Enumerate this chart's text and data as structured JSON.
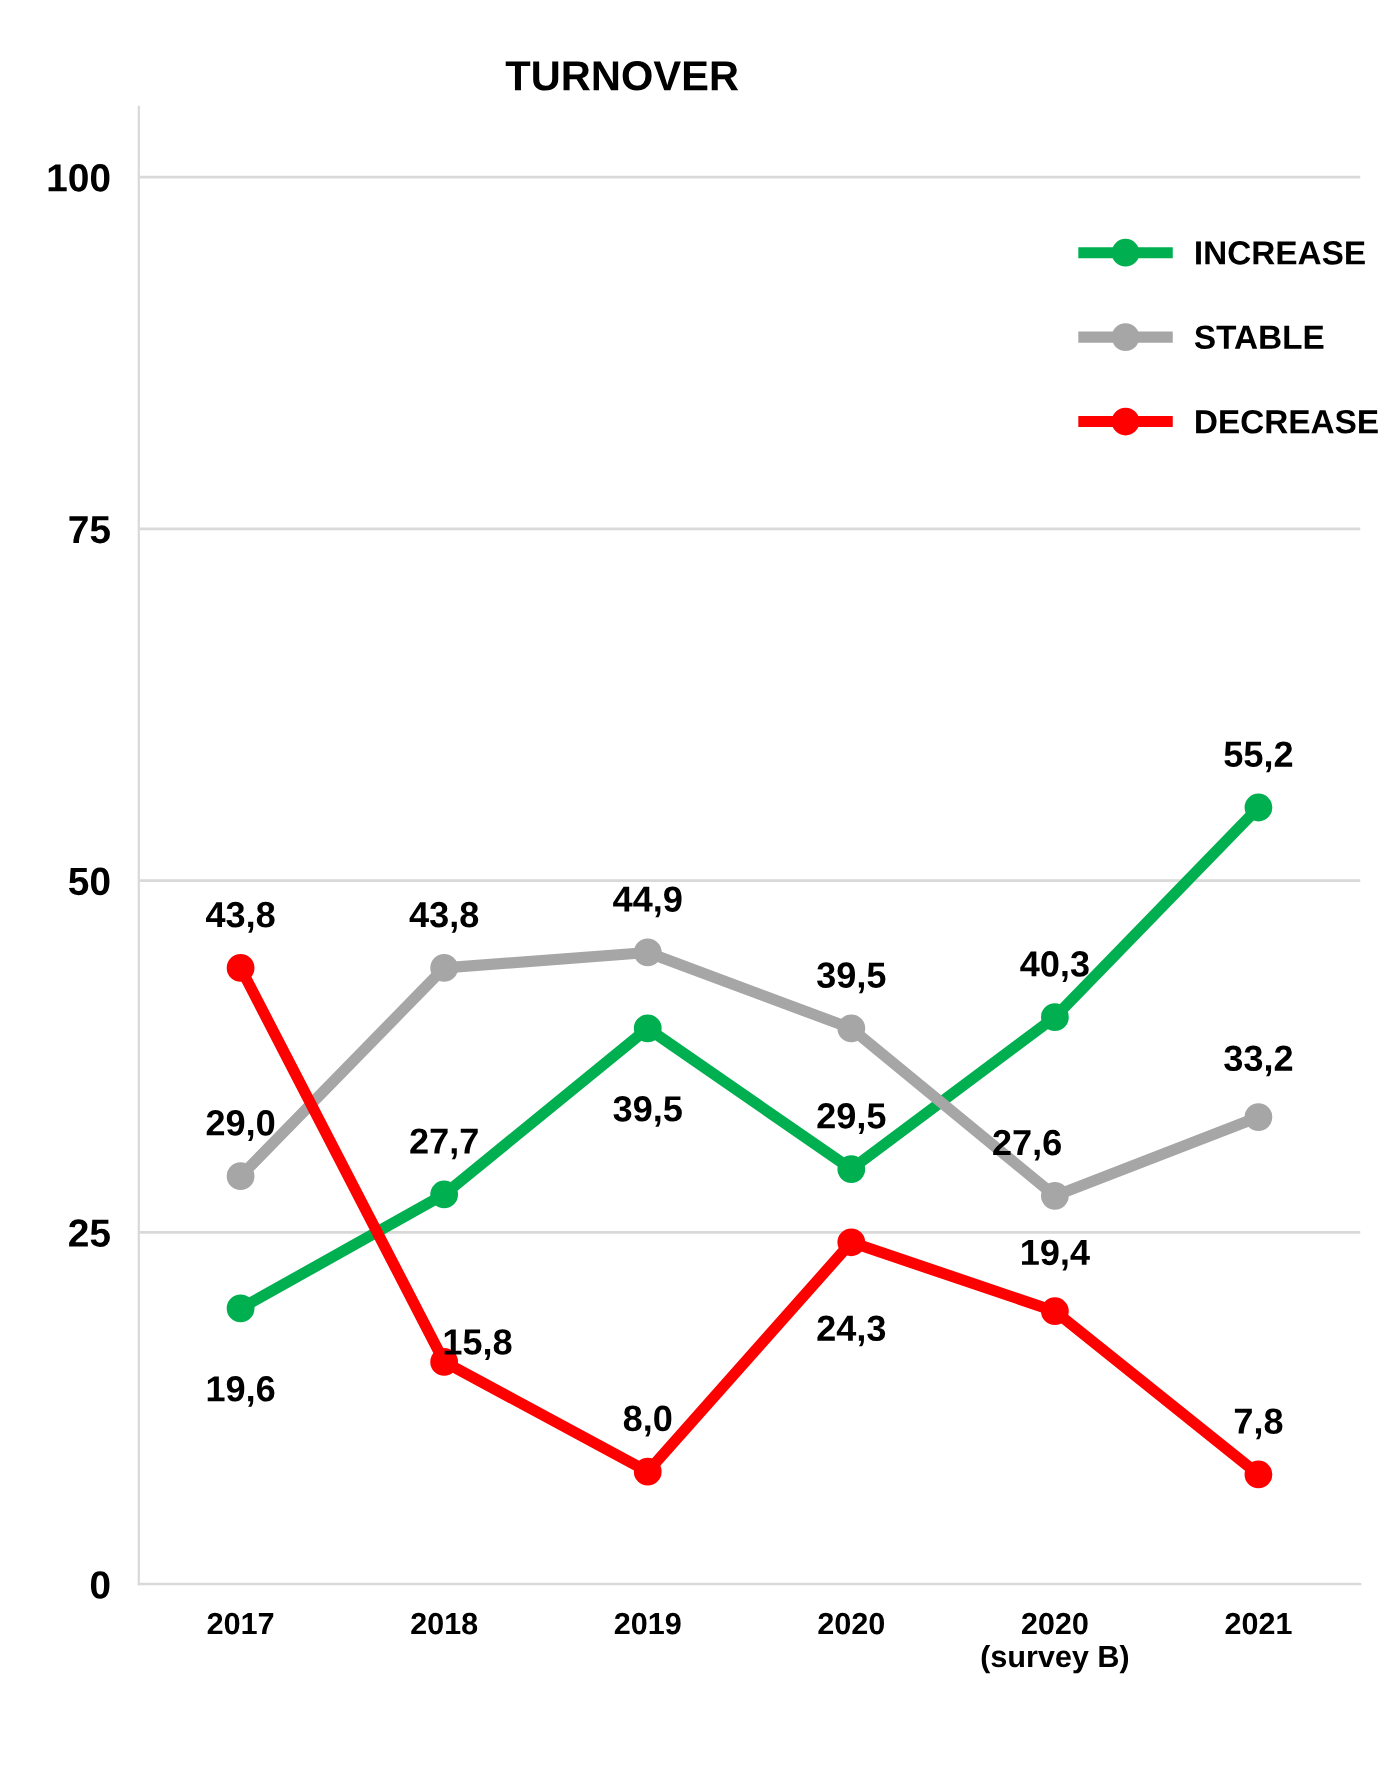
{
  "chart_data": {
    "type": "line",
    "title": "TURNOVER",
    "categories": [
      "2017",
      "2018",
      "2019",
      "2020",
      "2020\n(survey B)",
      "2021"
    ],
    "series": [
      {
        "name": "INCREASE",
        "color": "#00b050",
        "values": [
          19.6,
          27.7,
          39.5,
          29.5,
          40.3,
          55.2
        ],
        "value_labels": [
          "19,6",
          "27,7",
          "39,5",
          "29,5",
          "40,3",
          "55,2"
        ]
      },
      {
        "name": "STABLE",
        "color": "#a6a6a6",
        "values": [
          29.0,
          43.8,
          44.9,
          39.5,
          27.6,
          33.2
        ],
        "value_labels": [
          "29,0",
          "43,8",
          "44,9",
          "39,5",
          "27,6",
          "33,2"
        ]
      },
      {
        "name": "DECREASE",
        "color": "#ff0000",
        "values": [
          43.8,
          15.8,
          8.0,
          24.3,
          19.4,
          7.8
        ],
        "value_labels": [
          "43,8",
          "15,8",
          "8,0",
          "24,3",
          "19,4",
          "7,8"
        ]
      }
    ],
    "ylim": [
      0,
      105
    ],
    "yticks": [
      0,
      25,
      50,
      75,
      100
    ],
    "grid": "y",
    "legend": "top right",
    "marker": "circle",
    "line_style": "solid"
  }
}
